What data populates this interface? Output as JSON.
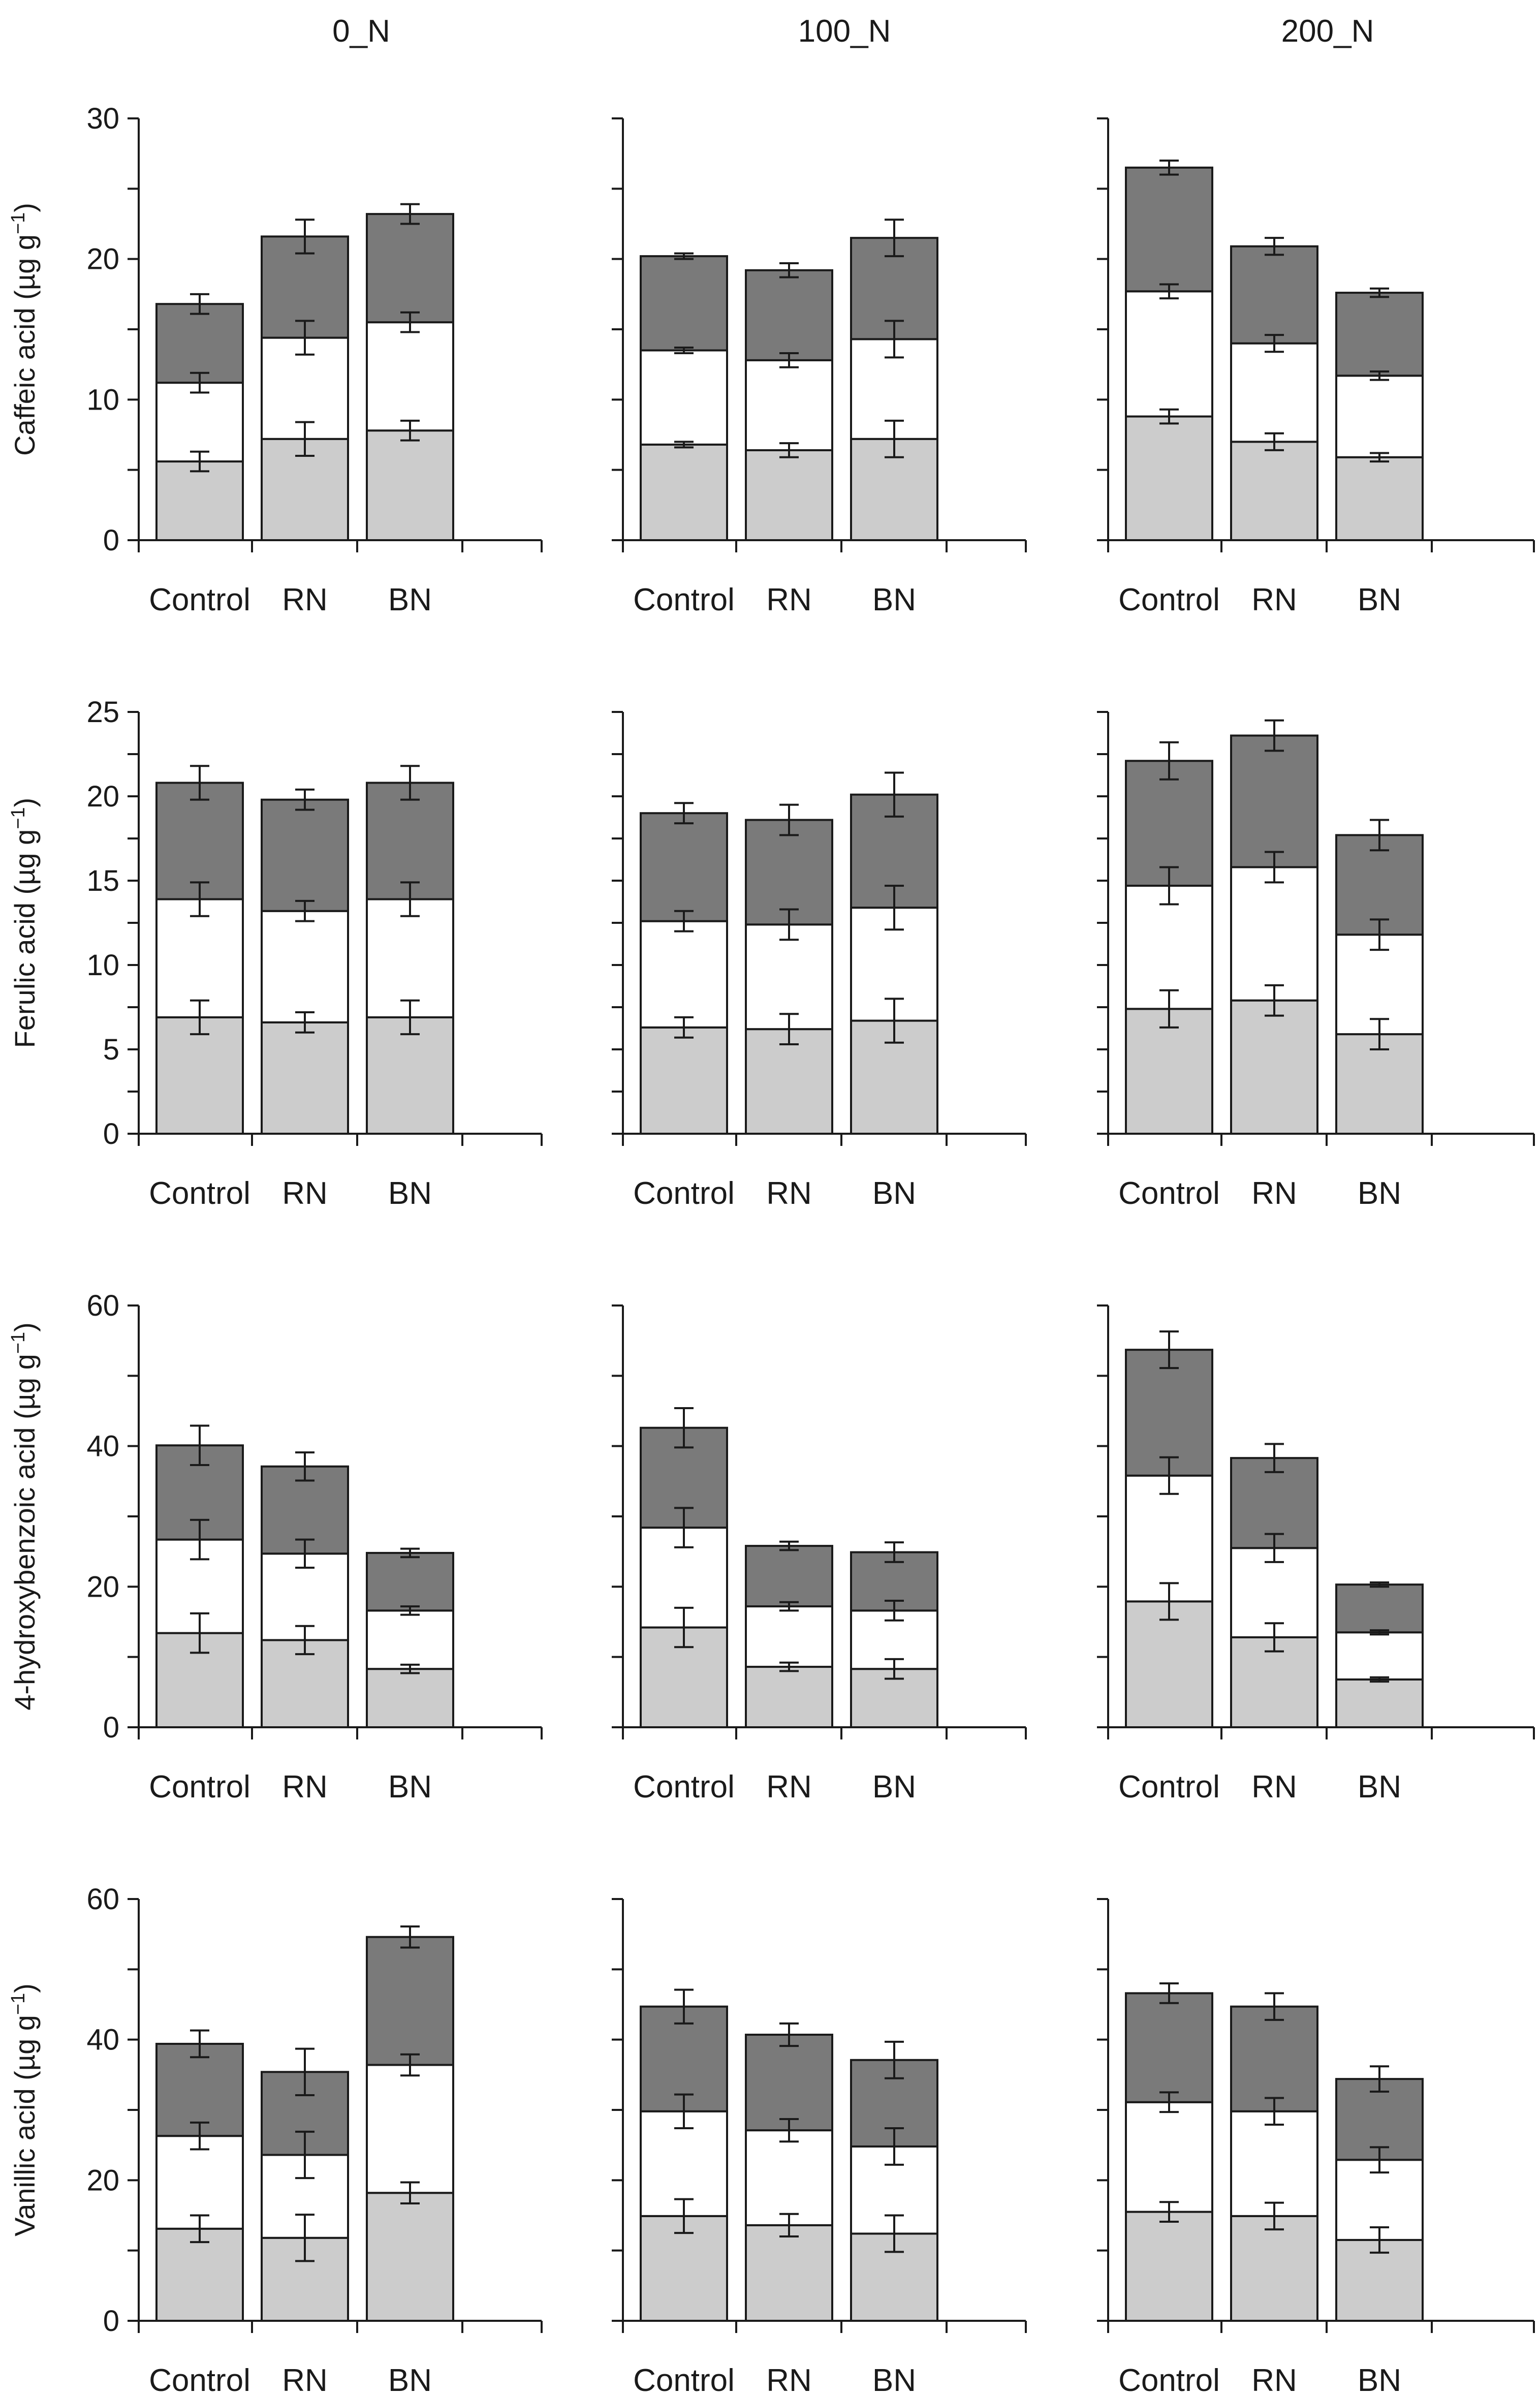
{
  "colors": {
    "bottom_segment": "#cccccc",
    "middle_segment": "#ffffff",
    "top_segment": "#7a7a7a",
    "ink": "#1a1a1a"
  },
  "chart_data": {
    "type": "bar",
    "subtype": "stacked",
    "column_titles": [
      "0_N",
      "100_N",
      "200_N"
    ],
    "categories": [
      "Control",
      "RN",
      "BN"
    ],
    "series_order": [
      "bottom",
      "middle",
      "top"
    ],
    "rows": [
      {
        "ylabel": "Caffeic acid (µg g",
        "ylabel_sup": "−1",
        "ylabel_close": ")",
        "ylim": [
          0,
          30
        ],
        "ticks": [
          "0",
          "10",
          "20",
          "30"
        ],
        "tick_values": [
          0,
          10,
          20,
          30
        ],
        "minor_step": 5,
        "panels": [
          {
            "title": "0_N",
            "bars": [
              {
                "category": "Control",
                "cum": [
                  5.6,
                  11.2,
                  16.8
                ],
                "err": [
                  0.7,
                  0.7,
                  0.7
                ]
              },
              {
                "category": "RN",
                "cum": [
                  7.2,
                  14.4,
                  21.6
                ],
                "err": [
                  1.2,
                  1.2,
                  1.2
                ]
              },
              {
                "category": "BN",
                "cum": [
                  7.8,
                  15.5,
                  23.2
                ],
                "err": [
                  0.7,
                  0.7,
                  0.7
                ]
              }
            ]
          },
          {
            "title": "100_N",
            "bars": [
              {
                "category": "Control",
                "cum": [
                  6.8,
                  13.5,
                  20.2
                ],
                "err": [
                  0.2,
                  0.2,
                  0.2
                ]
              },
              {
                "category": "RN",
                "cum": [
                  6.4,
                  12.8,
                  19.2
                ],
                "err": [
                  0.5,
                  0.5,
                  0.5
                ]
              },
              {
                "category": "BN",
                "cum": [
                  7.2,
                  14.3,
                  21.5
                ],
                "err": [
                  1.3,
                  1.3,
                  1.3
                ]
              }
            ]
          },
          {
            "title": "200_N",
            "bars": [
              {
                "category": "Control",
                "cum": [
                  8.8,
                  17.7,
                  26.5
                ],
                "err": [
                  0.5,
                  0.5,
                  0.5
                ]
              },
              {
                "category": "RN",
                "cum": [
                  7.0,
                  14.0,
                  20.9
                ],
                "err": [
                  0.6,
                  0.6,
                  0.6
                ]
              },
              {
                "category": "BN",
                "cum": [
                  5.9,
                  11.7,
                  17.6
                ],
                "err": [
                  0.3,
                  0.3,
                  0.3
                ]
              }
            ]
          }
        ]
      },
      {
        "ylabel": "Ferulic acid (µg g",
        "ylabel_sup": "−1",
        "ylabel_close": ")",
        "ylim": [
          0,
          25
        ],
        "ticks": [
          "0",
          "5",
          "10",
          "15",
          "20",
          "25"
        ],
        "tick_values": [
          0,
          5,
          10,
          15,
          20,
          25
        ],
        "minor_step": 2.5,
        "panels": [
          {
            "title": "0_N",
            "bars": [
              {
                "category": "Control",
                "cum": [
                  6.9,
                  13.9,
                  20.8
                ],
                "err": [
                  1.0,
                  1.0,
                  1.0
                ]
              },
              {
                "category": "RN",
                "cum": [
                  6.6,
                  13.2,
                  19.8
                ],
                "err": [
                  0.6,
                  0.6,
                  0.6
                ]
              },
              {
                "category": "BN",
                "cum": [
                  6.9,
                  13.9,
                  20.8
                ],
                "err": [
                  1.0,
                  1.0,
                  1.0
                ]
              }
            ]
          },
          {
            "title": "100_N",
            "bars": [
              {
                "category": "Control",
                "cum": [
                  6.3,
                  12.6,
                  19.0
                ],
                "err": [
                  0.6,
                  0.6,
                  0.6
                ]
              },
              {
                "category": "RN",
                "cum": [
                  6.2,
                  12.4,
                  18.6
                ],
                "err": [
                  0.9,
                  0.9,
                  0.9
                ]
              },
              {
                "category": "BN",
                "cum": [
                  6.7,
                  13.4,
                  20.1
                ],
                "err": [
                  1.3,
                  1.3,
                  1.3
                ]
              }
            ]
          },
          {
            "title": "200_N",
            "bars": [
              {
                "category": "Control",
                "cum": [
                  7.4,
                  14.7,
                  22.1
                ],
                "err": [
                  1.1,
                  1.1,
                  1.1
                ]
              },
              {
                "category": "RN",
                "cum": [
                  7.9,
                  15.8,
                  23.6
                ],
                "err": [
                  0.9,
                  0.9,
                  0.9
                ]
              },
              {
                "category": "BN",
                "cum": [
                  5.9,
                  11.8,
                  17.7
                ],
                "err": [
                  0.9,
                  0.9,
                  0.9
                ]
              }
            ]
          }
        ]
      },
      {
        "ylabel": "4-hydroxybenzoic acid (µg g",
        "ylabel_sup": "−1",
        "ylabel_close": ")",
        "ylim": [
          0,
          60
        ],
        "ticks": [
          "0",
          "20",
          "40",
          "60"
        ],
        "tick_values": [
          0,
          20,
          40,
          60
        ],
        "minor_step": 10,
        "panels": [
          {
            "title": "0_N",
            "bars": [
              {
                "category": "Control",
                "cum": [
                  13.4,
                  26.7,
                  40.1
                ],
                "err": [
                  2.8,
                  2.8,
                  2.8
                ]
              },
              {
                "category": "RN",
                "cum": [
                  12.4,
                  24.7,
                  37.1
                ],
                "err": [
                  2.0,
                  2.0,
                  2.0
                ]
              },
              {
                "category": "BN",
                "cum": [
                  8.3,
                  16.6,
                  24.8
                ],
                "err": [
                  0.6,
                  0.6,
                  0.6
                ]
              }
            ]
          },
          {
            "title": "100_N",
            "bars": [
              {
                "category": "Control",
                "cum": [
                  14.2,
                  28.4,
                  42.6
                ],
                "err": [
                  2.8,
                  2.8,
                  2.8
                ]
              },
              {
                "category": "RN",
                "cum": [
                  8.6,
                  17.2,
                  25.8
                ],
                "err": [
                  0.6,
                  0.6,
                  0.6
                ]
              },
              {
                "category": "BN",
                "cum": [
                  8.3,
                  16.6,
                  24.9
                ],
                "err": [
                  1.4,
                  1.4,
                  1.4
                ]
              }
            ]
          },
          {
            "title": "200_N",
            "bars": [
              {
                "category": "Control",
                "cum": [
                  17.9,
                  35.8,
                  53.7
                ],
                "err": [
                  2.6,
                  2.6,
                  2.6
                ]
              },
              {
                "category": "RN",
                "cum": [
                  12.8,
                  25.5,
                  38.3
                ],
                "err": [
                  2.0,
                  2.0,
                  2.0
                ]
              },
              {
                "category": "BN",
                "cum": [
                  6.8,
                  13.5,
                  20.3
                ],
                "err": [
                  0.3,
                  0.3,
                  0.3
                ]
              }
            ]
          }
        ]
      },
      {
        "ylabel": "Vanillic acid (µg g",
        "ylabel_sup": "−1",
        "ylabel_close": ")",
        "ylim": [
          0,
          60
        ],
        "ticks": [
          "0",
          "20",
          "40",
          "60"
        ],
        "tick_values": [
          0,
          20,
          40,
          60
        ],
        "minor_step": 10,
        "panels": [
          {
            "title": "0_N",
            "bars": [
              {
                "category": "Control",
                "cum": [
                  13.1,
                  26.3,
                  39.4
                ],
                "err": [
                  1.9,
                  1.9,
                  1.9
                ]
              },
              {
                "category": "RN",
                "cum": [
                  11.8,
                  23.6,
                  35.4
                ],
                "err": [
                  3.3,
                  3.3,
                  3.3
                ]
              },
              {
                "category": "BN",
                "cum": [
                  18.2,
                  36.4,
                  54.6
                ],
                "err": [
                  1.5,
                  1.5,
                  1.5
                ]
              }
            ]
          },
          {
            "title": "100_N",
            "bars": [
              {
                "category": "Control",
                "cum": [
                  14.9,
                  29.8,
                  44.7
                ],
                "err": [
                  2.4,
                  2.4,
                  2.4
                ]
              },
              {
                "category": "RN",
                "cum": [
                  13.6,
                  27.1,
                  40.7
                ],
                "err": [
                  1.6,
                  1.6,
                  1.6
                ]
              },
              {
                "category": "BN",
                "cum": [
                  12.4,
                  24.8,
                  37.1
                ],
                "err": [
                  2.6,
                  2.6,
                  2.6
                ]
              }
            ]
          },
          {
            "title": "200_N",
            "bars": [
              {
                "category": "Control",
                "cum": [
                  15.5,
                  31.1,
                  46.6
                ],
                "err": [
                  1.4,
                  1.4,
                  1.4
                ]
              },
              {
                "category": "RN",
                "cum": [
                  14.9,
                  29.8,
                  44.7
                ],
                "err": [
                  1.9,
                  1.9,
                  1.9
                ]
              },
              {
                "category": "BN",
                "cum": [
                  11.5,
                  22.9,
                  34.4
                ],
                "err": [
                  1.8,
                  1.8,
                  1.8
                ]
              }
            ]
          }
        ]
      }
    ]
  }
}
